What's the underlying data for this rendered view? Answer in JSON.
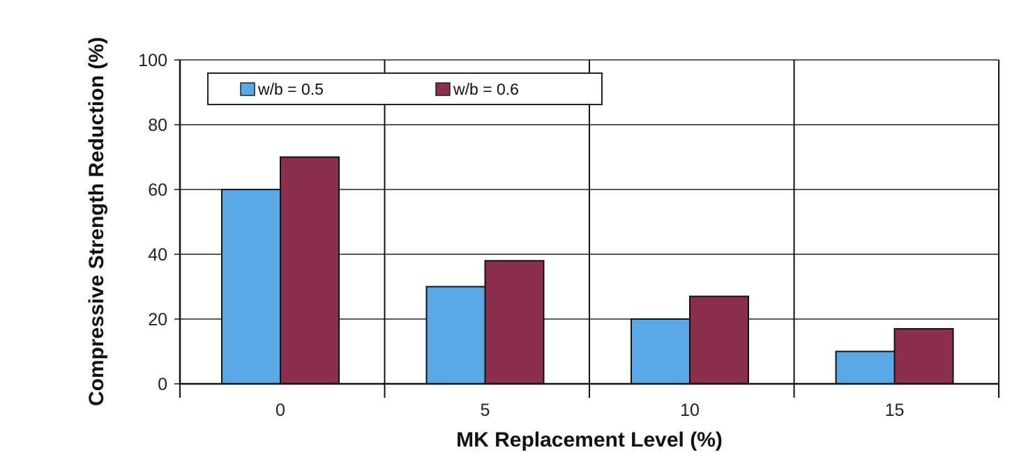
{
  "chart_data": {
    "type": "bar",
    "title": "",
    "xlabel": "MK Replacement Level (%)",
    "ylabel": "Compressive Strength Reduction (%)",
    "categories": [
      "0",
      "5",
      "10",
      "15"
    ],
    "series": [
      {
        "name": "w/b = 0.5",
        "color": "#5aa9e6",
        "values": [
          60,
          30,
          20,
          10
        ]
      },
      {
        "name": "w/b = 0.6",
        "color": "#8b2f4f",
        "values": [
          70,
          38,
          27,
          17
        ]
      }
    ],
    "ylim": [
      0,
      100
    ],
    "yticks": [
      "0",
      "20",
      "40",
      "60",
      "80",
      "100"
    ],
    "grid": true,
    "legend_position": "top-left"
  }
}
